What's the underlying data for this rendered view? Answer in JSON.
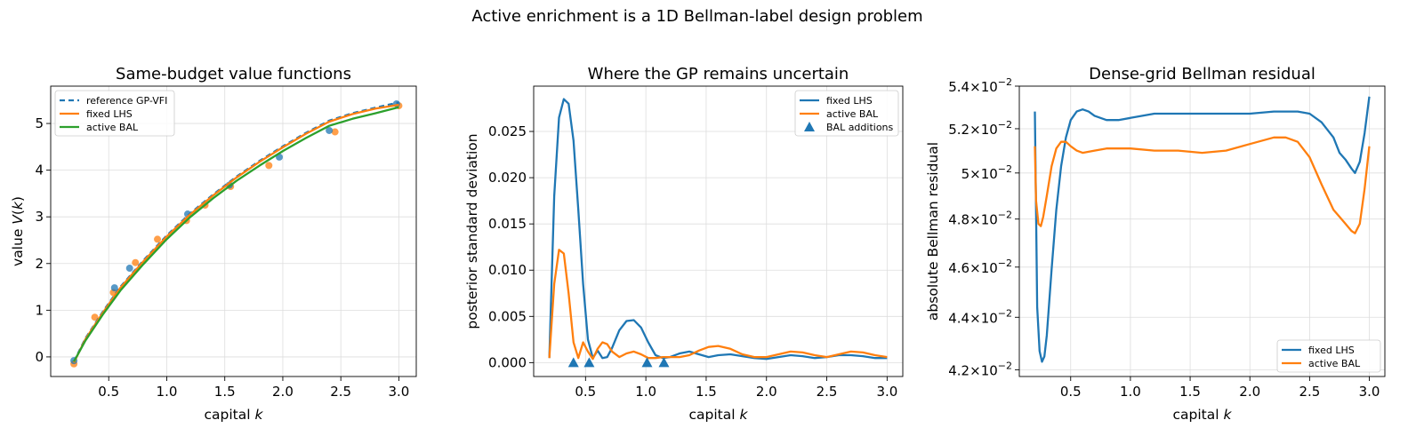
{
  "suptitle": "Active enrichment is a 1D Bellman-label design problem",
  "colors": {
    "blue": "#1f77b4",
    "orange": "#ff7f0e",
    "green": "#2ca02c",
    "grid": "#dddddd"
  },
  "chart_data": [
    {
      "type": "line",
      "title": "Same-budget value functions",
      "xlabel": "capital k",
      "ylabel": "value V(k)",
      "xlim": [
        0.0,
        3.15
      ],
      "ylim": [
        -0.42,
        5.8
      ],
      "xticks": [
        0.5,
        1.0,
        1.5,
        2.0,
        2.5,
        3.0
      ],
      "xtick_labels": [
        "0.5",
        "1.0",
        "1.5",
        "2.0",
        "2.5",
        "3.0"
      ],
      "yticks": [
        0,
        1,
        2,
        3,
        4,
        5
      ],
      "ytick_labels": [
        "0",
        "1",
        "2",
        "3",
        "4",
        "5"
      ],
      "grid": true,
      "legend": "top-left",
      "series": [
        {
          "name": "reference GP-VFI",
          "style": "dashed",
          "color": "#1f77b4",
          "x": [
            0.2,
            0.3,
            0.45,
            0.6,
            0.8,
            1.0,
            1.2,
            1.4,
            1.6,
            1.8,
            2.0,
            2.2,
            2.4,
            2.6,
            2.8,
            3.0
          ],
          "y": [
            -0.1,
            0.4,
            0.97,
            1.5,
            2.07,
            2.6,
            3.07,
            3.48,
            3.86,
            4.2,
            4.51,
            4.8,
            5.06,
            5.22,
            5.34,
            5.45
          ]
        },
        {
          "name": "fixed LHS",
          "style": "solid",
          "color": "#ff7f0e",
          "x": [
            0.2,
            0.3,
            0.45,
            0.6,
            0.8,
            1.0,
            1.2,
            1.4,
            1.6,
            1.8,
            2.0,
            2.2,
            2.4,
            2.6,
            2.8,
            3.0
          ],
          "y": [
            -0.12,
            0.38,
            0.95,
            1.48,
            2.05,
            2.58,
            3.05,
            3.46,
            3.84,
            4.18,
            4.49,
            4.78,
            5.04,
            5.2,
            5.32,
            5.4
          ]
        },
        {
          "name": "active BAL",
          "style": "solid",
          "color": "#2ca02c",
          "x": [
            0.2,
            0.3,
            0.45,
            0.6,
            0.8,
            1.0,
            1.2,
            1.4,
            1.6,
            1.8,
            2.0,
            2.2,
            2.4,
            2.6,
            2.8,
            3.0
          ],
          "y": [
            -0.1,
            0.35,
            0.91,
            1.42,
            1.99,
            2.52,
            2.99,
            3.4,
            3.77,
            4.1,
            4.41,
            4.69,
            4.95,
            5.1,
            5.22,
            5.35
          ]
        }
      ],
      "scatter": [
        {
          "color": "#ff7f0e",
          "x": [
            0.2,
            0.38,
            0.54,
            0.73,
            0.92,
            1.17,
            1.33,
            1.55,
            1.88,
            2.45,
            3.0
          ],
          "y": [
            -0.15,
            0.85,
            1.38,
            2.02,
            2.52,
            2.92,
            3.25,
            3.65,
            4.1,
            4.82,
            5.38
          ]
        },
        {
          "color": "#1f77b4",
          "x": [
            0.2,
            0.55,
            0.68,
            1.18,
            1.54,
            1.97,
            2.4,
            2.98
          ],
          "y": [
            -0.08,
            1.48,
            1.9,
            3.06,
            3.68,
            4.28,
            4.85,
            5.42
          ]
        }
      ]
    },
    {
      "type": "line",
      "title": "Where the GP remains uncertain",
      "xlabel": "capital k",
      "ylabel": "posterior standard deviation",
      "xlim": [
        0.07,
        3.13
      ],
      "ylim": [
        -0.0015,
        0.0299
      ],
      "xticks": [
        0.5,
        1.0,
        1.5,
        2.0,
        2.5,
        3.0
      ],
      "xtick_labels": [
        "0.5",
        "1.0",
        "1.5",
        "2.0",
        "2.5",
        "3.0"
      ],
      "yticks": [
        0.0,
        0.005,
        0.01,
        0.015,
        0.02,
        0.025
      ],
      "ytick_labels": [
        "0.000",
        "0.005",
        "0.010",
        "0.015",
        "0.020",
        "0.025"
      ],
      "grid": true,
      "legend": "top-right",
      "series": [
        {
          "name": "fixed LHS",
          "color": "#1f77b4",
          "x": [
            0.2,
            0.24,
            0.28,
            0.32,
            0.36,
            0.4,
            0.44,
            0.48,
            0.52,
            0.56,
            0.6,
            0.64,
            0.68,
            0.72,
            0.78,
            0.84,
            0.9,
            0.96,
            1.02,
            1.08,
            1.14,
            1.2,
            1.28,
            1.36,
            1.44,
            1.52,
            1.6,
            1.7,
            1.8,
            1.9,
            2.0,
            2.1,
            2.2,
            2.3,
            2.4,
            2.5,
            2.6,
            2.7,
            2.8,
            2.9,
            3.0
          ],
          "y": [
            0.0005,
            0.018,
            0.0265,
            0.0285,
            0.028,
            0.024,
            0.0165,
            0.0085,
            0.0025,
            0.0005,
            0.0013,
            0.0005,
            0.0006,
            0.0016,
            0.0035,
            0.0045,
            0.0046,
            0.0038,
            0.0022,
            0.0008,
            0.0005,
            0.0006,
            0.001,
            0.0012,
            0.0009,
            0.0006,
            0.0008,
            0.0009,
            0.0007,
            0.0005,
            0.0004,
            0.0006,
            0.0008,
            0.0007,
            0.0005,
            0.0006,
            0.0008,
            0.0008,
            0.0007,
            0.0005,
            0.0005
          ]
        },
        {
          "name": "active BAL",
          "color": "#ff7f0e",
          "x": [
            0.2,
            0.24,
            0.28,
            0.32,
            0.36,
            0.4,
            0.44,
            0.48,
            0.52,
            0.56,
            0.6,
            0.64,
            0.68,
            0.72,
            0.78,
            0.84,
            0.9,
            0.96,
            1.02,
            1.08,
            1.14,
            1.2,
            1.28,
            1.36,
            1.44,
            1.52,
            1.6,
            1.7,
            1.8,
            1.9,
            2.0,
            2.1,
            2.2,
            2.3,
            2.4,
            2.5,
            2.6,
            2.7,
            2.8,
            2.9,
            3.0
          ],
          "y": [
            0.0005,
            0.0085,
            0.0122,
            0.0118,
            0.0075,
            0.0022,
            0.0005,
            0.0022,
            0.0012,
            0.0004,
            0.0015,
            0.0022,
            0.002,
            0.0012,
            0.0006,
            0.001,
            0.0012,
            0.0009,
            0.0005,
            0.0005,
            0.0006,
            0.0006,
            0.0006,
            0.0008,
            0.0013,
            0.0017,
            0.0018,
            0.0015,
            0.0009,
            0.0006,
            0.0006,
            0.0009,
            0.0012,
            0.0011,
            0.0008,
            0.0006,
            0.0009,
            0.0012,
            0.0011,
            0.0008,
            0.0006
          ]
        }
      ],
      "markers": {
        "name": "BAL additions",
        "color": "#1f77b4",
        "x": [
          0.4,
          0.53,
          1.01,
          1.15
        ],
        "y": [
          0.0,
          0.0,
          0.0,
          0.0
        ]
      }
    },
    {
      "type": "line",
      "title": "Dense-grid Bellman residual",
      "xlabel": "capital k",
      "ylabel": "absolute Bellman residual",
      "yscale": "log",
      "xlim": [
        0.07,
        3.13
      ],
      "ylim": [
        0.04175,
        0.054
      ],
      "xticks": [
        0.5,
        1.0,
        1.5,
        2.0,
        2.5,
        3.0
      ],
      "xtick_labels": [
        "0.5",
        "1.0",
        "1.5",
        "2.0",
        "2.5",
        "3.0"
      ],
      "yticks": [
        0.042,
        0.044,
        0.046,
        0.048,
        0.05,
        0.052,
        0.054
      ],
      "ytick_mantissas": [
        "4.2",
        "4.4",
        "4.6",
        "4.8",
        "5",
        "5.2",
        "5.4"
      ],
      "ytick_base": "10",
      "ytick_exponent": "−2",
      "grid": true,
      "legend": "bottom-right",
      "series": [
        {
          "name": "fixed LHS",
          "color": "#1f77b4",
          "x": [
            0.2,
            0.22,
            0.24,
            0.26,
            0.28,
            0.3,
            0.34,
            0.38,
            0.42,
            0.46,
            0.5,
            0.55,
            0.6,
            0.65,
            0.7,
            0.8,
            0.9,
            1.0,
            1.2,
            1.4,
            1.6,
            1.8,
            2.0,
            2.2,
            2.4,
            2.5,
            2.6,
            2.7,
            2.75,
            2.8,
            2.85,
            2.88,
            2.92,
            2.96,
            3.0
          ],
          "y": [
            0.0528,
            0.0444,
            0.0427,
            0.0423,
            0.0425,
            0.0433,
            0.0459,
            0.0484,
            0.0503,
            0.0516,
            0.0524,
            0.0528,
            0.0529,
            0.0528,
            0.0526,
            0.0524,
            0.0524,
            0.0525,
            0.0527,
            0.0527,
            0.0527,
            0.0527,
            0.0527,
            0.0528,
            0.0528,
            0.0527,
            0.0523,
            0.0516,
            0.0509,
            0.0506,
            0.0502,
            0.05,
            0.0505,
            0.0518,
            0.0535
          ]
        },
        {
          "name": "active BAL",
          "color": "#ff7f0e",
          "x": [
            0.2,
            0.21,
            0.23,
            0.25,
            0.27,
            0.3,
            0.34,
            0.38,
            0.42,
            0.46,
            0.5,
            0.55,
            0.6,
            0.7,
            0.8,
            1.0,
            1.2,
            1.4,
            1.6,
            1.8,
            2.0,
            2.2,
            2.3,
            2.4,
            2.5,
            2.6,
            2.7,
            2.75,
            2.8,
            2.85,
            2.88,
            2.92,
            2.96,
            3.0
          ],
          "y": [
            0.0512,
            0.0488,
            0.0478,
            0.0477,
            0.0481,
            0.049,
            0.0503,
            0.0511,
            0.0514,
            0.0514,
            0.0512,
            0.051,
            0.0509,
            0.051,
            0.0511,
            0.0511,
            0.051,
            0.051,
            0.0509,
            0.051,
            0.0513,
            0.0516,
            0.0516,
            0.0514,
            0.0507,
            0.0495,
            0.0484,
            0.0481,
            0.0478,
            0.0475,
            0.0474,
            0.0478,
            0.0493,
            0.0512
          ]
        }
      ]
    }
  ]
}
